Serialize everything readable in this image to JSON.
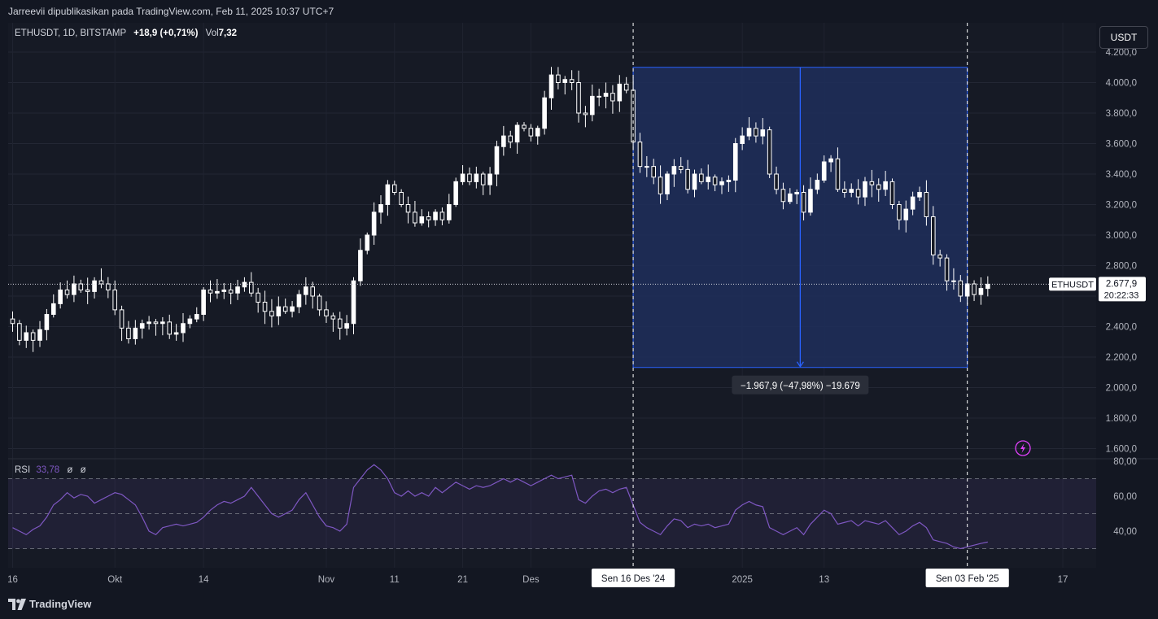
{
  "header": {
    "publish_line": "Jarreevii dipublikasikan pada TradingView.com, Feb 11, 2025 10:37 UTC+7"
  },
  "legend": {
    "symbol": "ETHUSDT, 1D, BITSTAMP",
    "change": "+18,9 (+0,71%)",
    "vol_label": "Vol",
    "vol_value": "7,32"
  },
  "rsi_legend": {
    "label": "RSI",
    "value": "33,78",
    "na1": "ø",
    "na2": "ø"
  },
  "currency": "USDT",
  "price_tag": {
    "symbol": "ETHUSDT",
    "price": "2.677,9",
    "countdown": "20:22:33"
  },
  "measure": {
    "label": "−1.967,9 (−47,98%) −19.679"
  },
  "footer": {
    "logo_text": "TradingView"
  },
  "colors": {
    "background": "#131722",
    "candle": "#ffffff",
    "rsi_line": "#7e57c2",
    "measure_fill": "#1e2f5c",
    "measure_stroke": "#2962ff"
  },
  "chart_data": [
    {
      "type": "candlestick",
      "y_axis": {
        "ylim": [
          1550,
          4250
        ],
        "ticks": [
          "1.600,0",
          "1.800,0",
          "2.000,0",
          "2.200,0",
          "2.400,0",
          "2.600,0",
          "2.800,0",
          "3.000,0",
          "3.200,0",
          "3.400,0",
          "3.600,0",
          "3.800,0",
          "4.000,0",
          "4.200,0"
        ],
        "tick_values": [
          1600,
          1800,
          2000,
          2200,
          2400,
          2600,
          2800,
          3000,
          3200,
          3400,
          3600,
          3800,
          4000,
          4200
        ]
      },
      "x_axis": {
        "ticks": [
          {
            "label": "16",
            "day": 0
          },
          {
            "label": "Okt",
            "day": 15
          },
          {
            "label": "14",
            "day": 28
          },
          {
            "label": "Nov",
            "day": 46
          },
          {
            "label": "11",
            "day": 56
          },
          {
            "label": "21",
            "day": 66
          },
          {
            "label": "Des",
            "day": 76
          },
          {
            "label": "2025",
            "day": 107
          },
          {
            "label": "13",
            "day": 119
          },
          {
            "label": "17",
            "day": 154
          }
        ],
        "highlight_ticks": [
          {
            "label": "Sen 16 Des '24",
            "day": 91
          },
          {
            "label": "Sen 03 Feb '25",
            "day": 140
          }
        ],
        "x_min": -1,
        "x_max": 160
      },
      "last_price": 2677.9,
      "closes": [
        2420,
        2310,
        2360,
        2310,
        2380,
        2480,
        2550,
        2640,
        2610,
        2680,
        2640,
        2630,
        2700,
        2680,
        2640,
        2510,
        2390,
        2320,
        2390,
        2420,
        2430,
        2420,
        2430,
        2350,
        2360,
        2420,
        2450,
        2480,
        2640,
        2620,
        2630,
        2640,
        2620,
        2660,
        2690,
        2620,
        2560,
        2500,
        2470,
        2530,
        2500,
        2530,
        2610,
        2660,
        2600,
        2510,
        2470,
        2450,
        2390,
        2420,
        2700,
        2900,
        3000,
        3150,
        3200,
        3330,
        3280,
        3200,
        3150,
        3080,
        3120,
        3100,
        3150,
        3100,
        3200,
        3350,
        3400,
        3350,
        3400,
        3330,
        3400,
        3580,
        3650,
        3610,
        3720,
        3700,
        3650,
        3700,
        3900,
        4050,
        4000,
        4020,
        4000,
        3800,
        3790,
        3910,
        3910,
        3930,
        3880,
        3990,
        3950,
        3610,
        3450,
        3450,
        3380,
        3270,
        3400,
        3450,
        3430,
        3300,
        3400,
        3350,
        3380,
        3330,
        3350,
        3360,
        3600,
        3650,
        3700,
        3650,
        3690,
        3400,
        3300,
        3220,
        3270,
        3280,
        3150,
        3300,
        3360,
        3480,
        3500,
        3300,
        3280,
        3300,
        3250,
        3350,
        3330,
        3300,
        3350,
        3200,
        3100,
        3170,
        3250,
        3280,
        3120,
        2870,
        2850,
        2700,
        2700,
        2600,
        2680,
        2610,
        2650,
        2677.9
      ],
      "rsi": {
        "ylim": [
          20,
          80
        ],
        "ticks": [
          "40,00",
          "60,00",
          "80,00"
        ],
        "tick_values": [
          40,
          60,
          80
        ],
        "bands": [
          30,
          50,
          70
        ],
        "values": [
          42,
          40,
          38,
          41,
          43,
          48,
          55,
          58,
          62,
          59,
          61,
          60,
          56,
          58,
          60,
          62,
          61,
          58,
          55,
          48,
          40,
          38,
          42,
          43,
          44,
          43,
          44,
          45,
          48,
          52,
          55,
          57,
          56,
          58,
          60,
          65,
          60,
          55,
          50,
          48,
          50,
          52,
          58,
          62,
          55,
          48,
          43,
          42,
          40,
          44,
          65,
          70,
          75,
          78,
          75,
          70,
          62,
          60,
          63,
          60,
          62,
          60,
          65,
          62,
          65,
          68,
          66,
          64,
          66,
          65,
          66,
          68,
          70,
          68,
          70,
          68,
          66,
          68,
          70,
          72,
          70,
          71,
          72,
          58,
          56,
          60,
          63,
          64,
          62,
          64,
          65,
          55,
          45,
          42,
          40,
          38,
          43,
          47,
          46,
          42,
          44,
          43,
          44,
          42,
          43,
          44,
          52,
          55,
          57,
          55,
          54,
          42,
          40,
          38,
          40,
          42,
          38,
          44,
          48,
          52,
          50,
          44,
          45,
          46,
          43,
          46,
          45,
          44,
          46,
          42,
          38,
          40,
          43,
          45,
          42,
          35,
          34,
          33,
          31,
          30,
          31,
          32,
          33,
          33.78
        ]
      },
      "measure_box": {
        "from_day": 91,
        "to_day": 140,
        "top_price": 4100,
        "bottom_price": 2132
      }
    }
  ]
}
